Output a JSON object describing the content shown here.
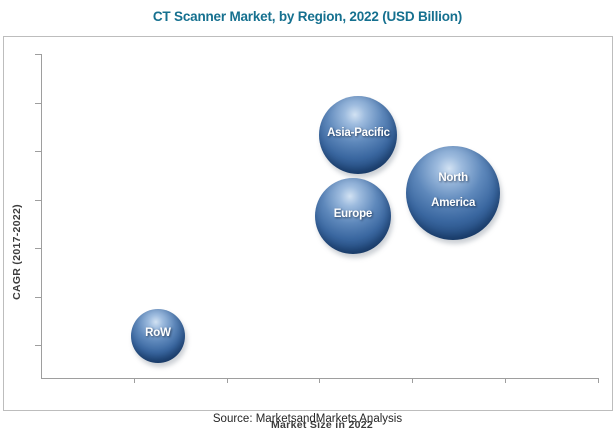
{
  "title": "CT Scanner Market, by Region, 2022 (USD Billion)",
  "source": "Source: MarketsandMarkets Analysis",
  "colors": {
    "title_text": "#15708F",
    "axis_line": "#9E9E9E",
    "plot_border": "#BDBDBD",
    "axis_label_text": "#3D3D3D",
    "bubble_highlight": "#D2E2F3",
    "bubble_body": "#3A67A0",
    "bubble_edge": "#143459",
    "bubble_label_text": "#FFFFFF"
  },
  "chart_data": {
    "type": "scatter",
    "subtype": "bubble",
    "title": "CT Scanner Market, by Region, 2022 (USD Billion)",
    "xlabel": "Market Size in 2022",
    "ylabel": "CAGR (2017-2022)",
    "grid": false,
    "legend": "none",
    "axis_tick_labels_visible": false,
    "x_tick_count": 6,
    "y_tick_count": 7,
    "points": [
      {
        "label": "Asia-Pacific",
        "lines": [
          "Asia-Pacific"
        ],
        "x_rel": 0.57,
        "y_rel": 0.75,
        "radius_px": 39
      },
      {
        "label": "North America",
        "lines": [
          "North",
          "America"
        ],
        "x_rel": 0.74,
        "y_rel": 0.57,
        "radius_px": 47
      },
      {
        "label": "Europe",
        "lines": [
          "Europe"
        ],
        "x_rel": 0.56,
        "y_rel": 0.5,
        "radius_px": 38
      },
      {
        "label": "RoW",
        "lines": [
          "RoW"
        ],
        "x_rel": 0.21,
        "y_rel": 0.13,
        "radius_px": 27
      }
    ]
  }
}
